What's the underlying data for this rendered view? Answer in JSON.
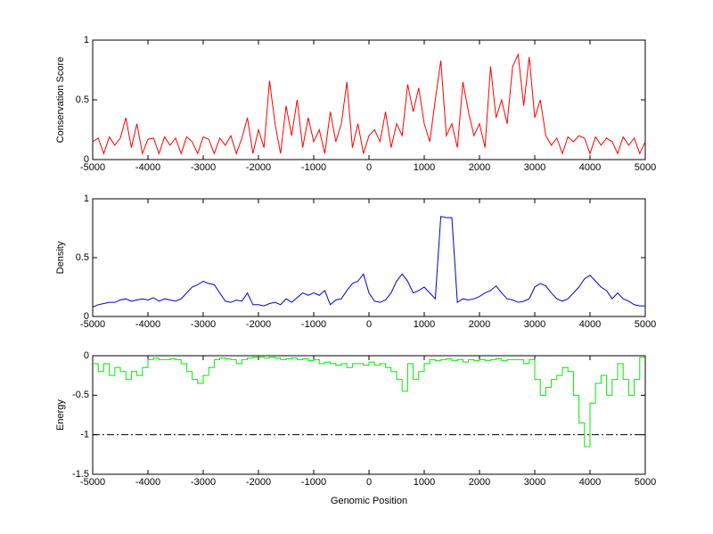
{
  "chart_data": [
    {
      "type": "line",
      "ylabel": "Conservation Score",
      "color": "#ff0000",
      "x": [
        -5000,
        -4900,
        -4800,
        -4700,
        -4600,
        -4500,
        -4400,
        -4300,
        -4200,
        -4100,
        -4000,
        -3900,
        -3800,
        -3700,
        -3600,
        -3500,
        -3400,
        -3300,
        -3200,
        -3100,
        -3000,
        -2900,
        -2800,
        -2700,
        -2600,
        -2500,
        -2400,
        -2300,
        -2200,
        -2100,
        -2000,
        -1900,
        -1800,
        -1700,
        -1600,
        -1500,
        -1400,
        -1300,
        -1200,
        -1100,
        -1000,
        -900,
        -800,
        -700,
        -600,
        -500,
        -400,
        -300,
        -200,
        -100,
        0,
        100,
        200,
        300,
        400,
        500,
        600,
        700,
        800,
        900,
        1000,
        1100,
        1200,
        1300,
        1400,
        1500,
        1600,
        1700,
        1800,
        1900,
        2000,
        2100,
        2200,
        2300,
        2400,
        2500,
        2600,
        2700,
        2800,
        2900,
        3000,
        3100,
        3200,
        3300,
        3400,
        3500,
        3600,
        3700,
        3800,
        3900,
        4000,
        4100,
        4200,
        4300,
        4400,
        4500,
        4600,
        4700,
        4800,
        4900,
        5000
      ],
      "values": [
        0.15,
        0.18,
        0.05,
        0.19,
        0.12,
        0.18,
        0.35,
        0.1,
        0.3,
        0.05,
        0.17,
        0.18,
        0.05,
        0.19,
        0.12,
        0.18,
        0.05,
        0.19,
        0.15,
        0.05,
        0.19,
        0.17,
        0.05,
        0.18,
        0.12,
        0.2,
        0.05,
        0.18,
        0.35,
        0.05,
        0.25,
        0.1,
        0.66,
        0.3,
        0.05,
        0.45,
        0.2,
        0.5,
        0.1,
        0.35,
        0.15,
        0.25,
        0.05,
        0.4,
        0.15,
        0.3,
        0.65,
        0.1,
        0.3,
        0.05,
        0.2,
        0.25,
        0.15,
        0.4,
        0.1,
        0.3,
        0.2,
        0.63,
        0.4,
        0.6,
        0.3,
        0.15,
        0.5,
        0.83,
        0.2,
        0.3,
        0.1,
        0.65,
        0.4,
        0.2,
        0.3,
        0.1,
        0.78,
        0.35,
        0.5,
        0.3,
        0.78,
        0.88,
        0.45,
        0.86,
        0.35,
        0.5,
        0.2,
        0.12,
        0.18,
        0.05,
        0.19,
        0.15,
        0.2,
        0.18,
        0.05,
        0.19,
        0.12,
        0.18,
        0.15,
        0.05,
        0.19,
        0.12,
        0.18,
        0.05,
        0.15
      ],
      "xlim": [
        -5000,
        5000
      ],
      "xticks": [
        -5000,
        -4000,
        -3000,
        -2000,
        -1000,
        0,
        1000,
        2000,
        3000,
        4000,
        5000
      ],
      "ylim": [
        0,
        1
      ],
      "yticks": [
        0,
        0.5,
        1
      ]
    },
    {
      "type": "line",
      "ylabel": "Density",
      "color": "#0000cc",
      "x": [
        -5000,
        -4900,
        -4800,
        -4700,
        -4600,
        -4500,
        -4400,
        -4300,
        -4200,
        -4100,
        -4000,
        -3900,
        -3800,
        -3700,
        -3600,
        -3500,
        -3400,
        -3300,
        -3200,
        -3100,
        -3000,
        -2900,
        -2800,
        -2700,
        -2600,
        -2500,
        -2400,
        -2300,
        -2200,
        -2100,
        -2000,
        -1900,
        -1800,
        -1700,
        -1600,
        -1500,
        -1400,
        -1300,
        -1200,
        -1100,
        -1000,
        -900,
        -800,
        -700,
        -600,
        -500,
        -400,
        -300,
        -200,
        -100,
        0,
        100,
        200,
        300,
        400,
        500,
        600,
        700,
        800,
        900,
        1000,
        1100,
        1200,
        1300,
        1400,
        1500,
        1600,
        1700,
        1800,
        1900,
        2000,
        2100,
        2200,
        2300,
        2400,
        2500,
        2600,
        2700,
        2800,
        2900,
        3000,
        3100,
        3200,
        3300,
        3400,
        3500,
        3600,
        3700,
        3800,
        3900,
        4000,
        4100,
        4200,
        4300,
        4400,
        4500,
        4600,
        4700,
        4800,
        4900,
        5000
      ],
      "values": [
        0.08,
        0.1,
        0.11,
        0.12,
        0.12,
        0.14,
        0.15,
        0.13,
        0.14,
        0.15,
        0.14,
        0.16,
        0.13,
        0.15,
        0.14,
        0.13,
        0.15,
        0.2,
        0.25,
        0.27,
        0.3,
        0.28,
        0.27,
        0.2,
        0.13,
        0.12,
        0.14,
        0.13,
        0.2,
        0.1,
        0.1,
        0.09,
        0.11,
        0.12,
        0.1,
        0.15,
        0.12,
        0.16,
        0.2,
        0.18,
        0.2,
        0.18,
        0.22,
        0.1,
        0.14,
        0.15,
        0.22,
        0.28,
        0.3,
        0.36,
        0.2,
        0.13,
        0.12,
        0.14,
        0.2,
        0.3,
        0.36,
        0.3,
        0.2,
        0.22,
        0.25,
        0.2,
        0.15,
        0.85,
        0.84,
        0.84,
        0.12,
        0.15,
        0.14,
        0.15,
        0.17,
        0.2,
        0.22,
        0.26,
        0.2,
        0.15,
        0.14,
        0.12,
        0.13,
        0.15,
        0.25,
        0.28,
        0.26,
        0.2,
        0.15,
        0.13,
        0.15,
        0.2,
        0.25,
        0.32,
        0.35,
        0.3,
        0.25,
        0.22,
        0.15,
        0.2,
        0.15,
        0.13,
        0.1,
        0.09,
        0.09
      ],
      "xlim": [
        -5000,
        5000
      ],
      "xticks": [
        -5000,
        -4000,
        -3000,
        -2000,
        -1000,
        0,
        1000,
        2000,
        3000,
        4000,
        5000
      ],
      "ylim": [
        0,
        1
      ],
      "yticks": [
        0,
        0.5,
        1
      ]
    },
    {
      "type": "step",
      "ylabel": "Energy",
      "xlabel": "Genomic Position",
      "color": "#00ee00",
      "x": [
        -5000,
        -4900,
        -4800,
        -4700,
        -4600,
        -4500,
        -4400,
        -4300,
        -4200,
        -4100,
        -4000,
        -3900,
        -3800,
        -3700,
        -3600,
        -3500,
        -3400,
        -3300,
        -3200,
        -3100,
        -3000,
        -2900,
        -2800,
        -2700,
        -2600,
        -2500,
        -2400,
        -2300,
        -2200,
        -2100,
        -2000,
        -1900,
        -1800,
        -1700,
        -1600,
        -1500,
        -1400,
        -1300,
        -1200,
        -1100,
        -1000,
        -900,
        -800,
        -700,
        -600,
        -500,
        -400,
        -300,
        -200,
        -100,
        0,
        100,
        200,
        300,
        400,
        500,
        600,
        700,
        800,
        900,
        1000,
        1100,
        1200,
        1300,
        1400,
        1500,
        1600,
        1700,
        1800,
        1900,
        2000,
        2100,
        2200,
        2300,
        2400,
        2500,
        2600,
        2700,
        2800,
        2900,
        3000,
        3100,
        3200,
        3300,
        3400,
        3500,
        3600,
        3700,
        3800,
        3900,
        4000,
        4100,
        4200,
        4300,
        4400,
        4500,
        4600,
        4700,
        4800,
        4900,
        5000
      ],
      "values": [
        -0.1,
        -0.2,
        -0.1,
        -0.25,
        -0.15,
        -0.2,
        -0.3,
        -0.2,
        -0.25,
        -0.15,
        -0.05,
        -0.03,
        -0.05,
        -0.05,
        -0.04,
        -0.05,
        -0.1,
        -0.2,
        -0.3,
        -0.35,
        -0.25,
        -0.15,
        -0.05,
        -0.03,
        -0.04,
        -0.05,
        -0.1,
        -0.05,
        -0.03,
        -0.02,
        -0.02,
        -0.03,
        -0.02,
        -0.03,
        -0.05,
        -0.04,
        -0.03,
        -0.05,
        -0.04,
        -0.06,
        -0.05,
        -0.1,
        -0.08,
        -0.1,
        -0.12,
        -0.1,
        -0.15,
        -0.1,
        -0.1,
        -0.12,
        -0.08,
        -0.12,
        -0.1,
        -0.15,
        -0.2,
        -0.3,
        -0.45,
        -0.1,
        -0.3,
        -0.2,
        -0.1,
        -0.05,
        -0.06,
        -0.05,
        -0.04,
        -0.06,
        -0.05,
        -0.08,
        -0.05,
        -0.06,
        -0.05,
        -0.06,
        -0.05,
        -0.04,
        -0.06,
        -0.05,
        -0.05,
        -0.05,
        -0.1,
        -0.05,
        -0.3,
        -0.5,
        -0.4,
        -0.3,
        -0.25,
        -0.15,
        -0.2,
        -0.5,
        -0.85,
        -1.15,
        -0.6,
        -0.35,
        -0.25,
        -0.5,
        -0.3,
        -0.1,
        -0.3,
        -0.5,
        -0.3,
        -0.02,
        -0.02
      ],
      "reference_line": -1,
      "xlim": [
        -5000,
        5000
      ],
      "xticks": [
        -5000,
        -4000,
        -3000,
        -2000,
        -1000,
        0,
        1000,
        2000,
        3000,
        4000,
        5000
      ],
      "ylim": [
        -1.5,
        0
      ],
      "yticks": [
        -1.5,
        -1,
        -0.5,
        0
      ]
    }
  ]
}
